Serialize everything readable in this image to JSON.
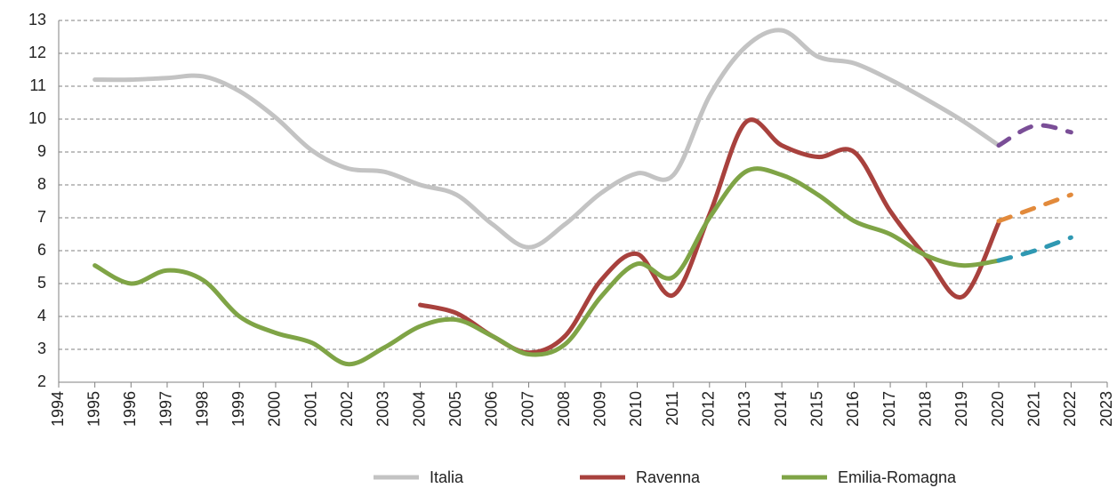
{
  "chart_data": {
    "type": "line",
    "xlim": [
      1994,
      2023
    ],
    "xticks": [
      1994,
      1995,
      1996,
      1997,
      1998,
      1999,
      2000,
      2001,
      2002,
      2003,
      2004,
      2005,
      2006,
      2007,
      2008,
      2009,
      2010,
      2011,
      2012,
      2013,
      2014,
      2015,
      2016,
      2017,
      2018,
      2019,
      2020,
      2021,
      2022,
      2023
    ],
    "ylim": [
      2,
      13
    ],
    "yticks": [
      2,
      3,
      4,
      5,
      6,
      7,
      8,
      9,
      10,
      11,
      12,
      13
    ],
    "grid": true,
    "legend": "bottom",
    "series": [
      {
        "name": "Italia",
        "color": "#c3c3c3",
        "x": [
          1995,
          1996,
          1997,
          1998,
          1999,
          2000,
          2001,
          2002,
          2003,
          2004,
          2005,
          2006,
          2007,
          2008,
          2009,
          2010,
          2011,
          2012,
          2013,
          2014,
          2015,
          2016,
          2017,
          2018,
          2019,
          2020
        ],
        "values": [
          11.2,
          11.2,
          11.25,
          11.3,
          10.85,
          10.05,
          9.05,
          8.5,
          8.4,
          8.0,
          7.7,
          6.8,
          6.1,
          6.8,
          7.75,
          8.35,
          8.3,
          10.7,
          12.2,
          12.7,
          11.9,
          11.7,
          11.2,
          10.6,
          9.95,
          9.2
        ]
      },
      {
        "name": "Ravenna",
        "color": "#a8413d",
        "x": [
          2004,
          2005,
          2006,
          2007,
          2008,
          2009,
          2010,
          2011,
          2012,
          2013,
          2014,
          2015,
          2016,
          2017,
          2018,
          2019,
          2020
        ],
        "values": [
          4.35,
          4.1,
          3.4,
          2.9,
          3.4,
          5.1,
          5.9,
          4.65,
          7.1,
          9.9,
          9.2,
          8.85,
          9.0,
          7.2,
          5.8,
          4.6,
          6.85
        ]
      },
      {
        "name": "Emilia-Romagna",
        "color": "#7fa446",
        "x": [
          1995,
          1996,
          1997,
          1998,
          1999,
          2000,
          2001,
          2002,
          2003,
          2004,
          2005,
          2006,
          2007,
          2008,
          2009,
          2010,
          2011,
          2012,
          2013,
          2014,
          2015,
          2016,
          2017,
          2018,
          2019,
          2020
        ],
        "values": [
          5.55,
          5.0,
          5.4,
          5.1,
          4.0,
          3.5,
          3.2,
          2.55,
          3.05,
          3.7,
          3.9,
          3.4,
          2.85,
          3.15,
          4.6,
          5.6,
          5.2,
          7.0,
          8.4,
          8.3,
          7.7,
          6.9,
          6.5,
          5.85,
          5.55,
          5.7
        ]
      },
      {
        "color": "#7a4e97",
        "dashed": true,
        "x": [
          2020,
          2021,
          2022
        ],
        "values": [
          9.2,
          9.8,
          9.6
        ]
      },
      {
        "color": "#e28a3b",
        "dashed": true,
        "x": [
          2020,
          2021,
          2022
        ],
        "values": [
          6.9,
          7.3,
          7.7
        ]
      },
      {
        "color": "#2f98b2",
        "dashed": true,
        "x": [
          2020,
          2021,
          2022
        ],
        "values": [
          5.7,
          6.0,
          6.4
        ]
      }
    ]
  }
}
